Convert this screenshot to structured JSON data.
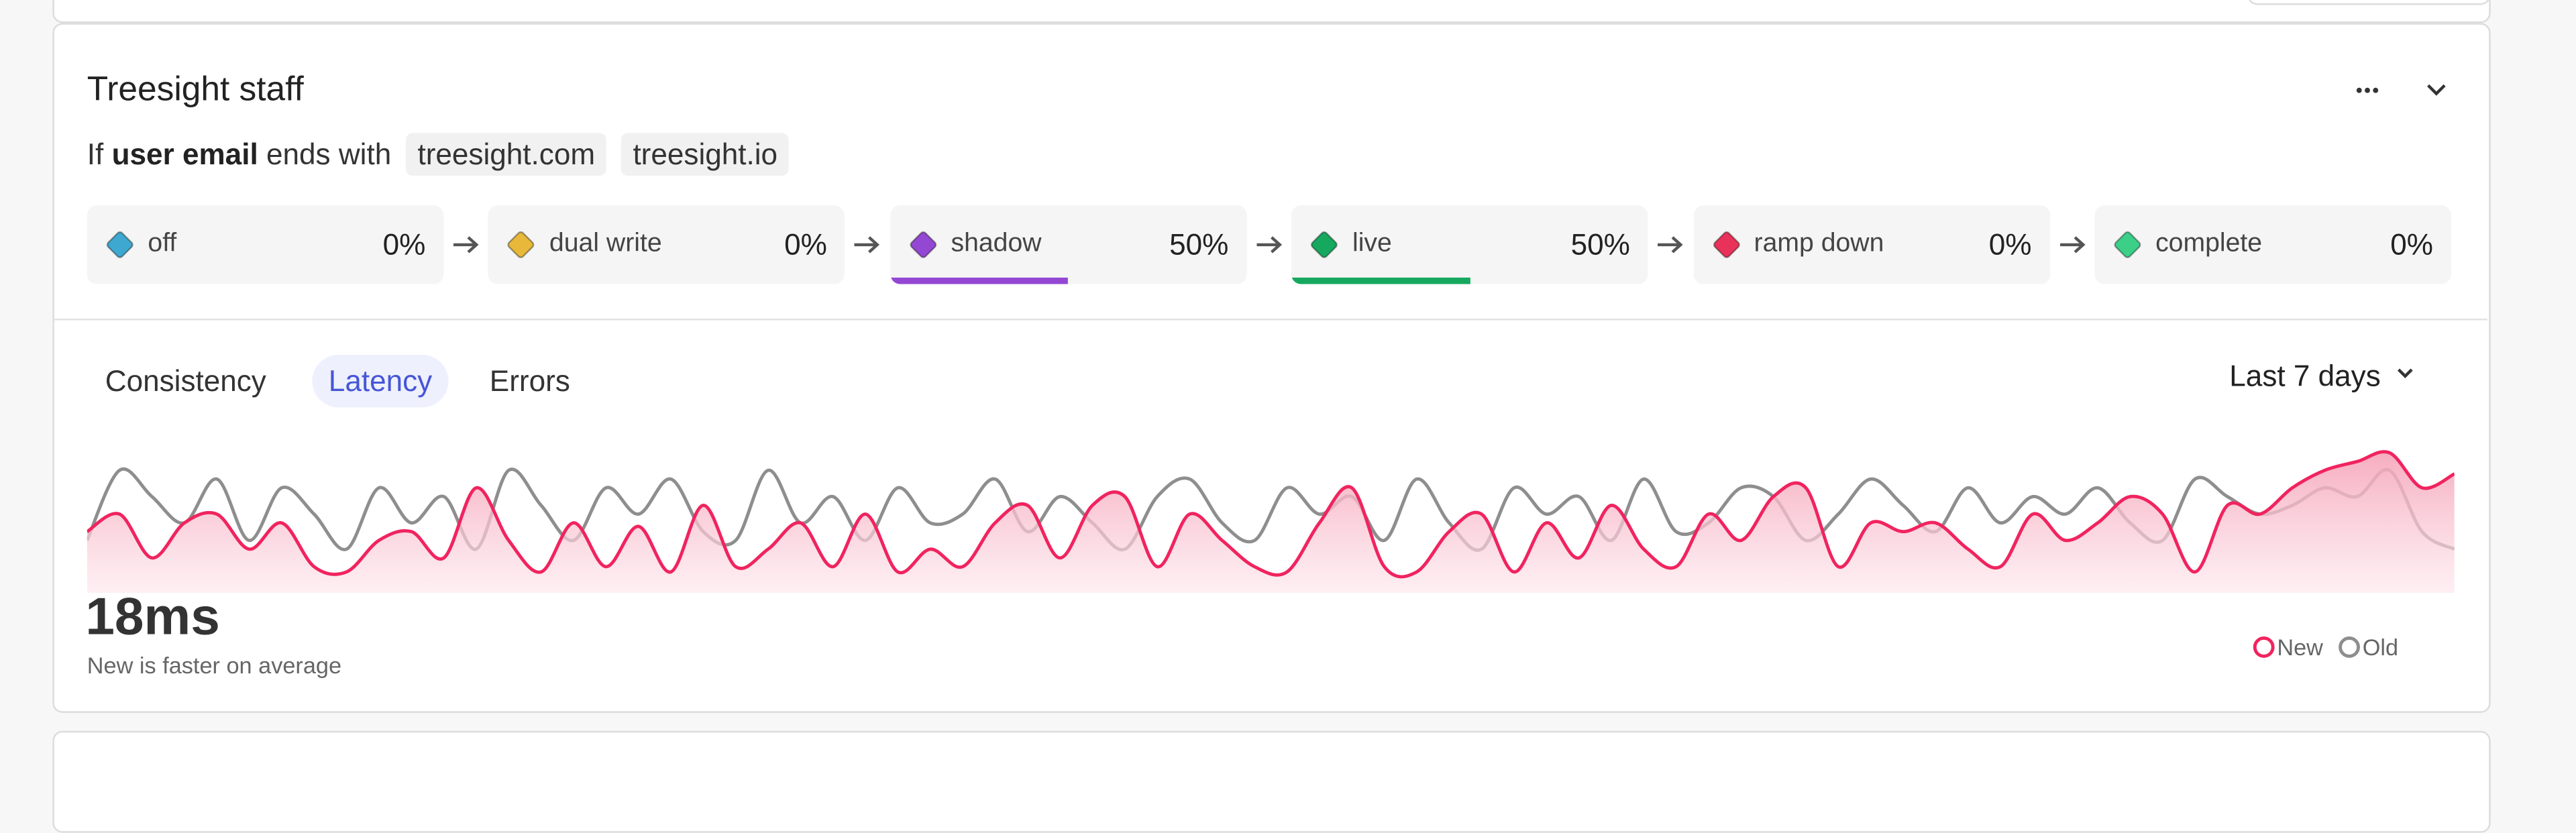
{
  "header": {
    "title": "Treesight staff"
  },
  "rule": {
    "prefix": "If",
    "attribute": "user email",
    "operator": "ends with",
    "values": [
      "treesight.com",
      "treesight.io"
    ]
  },
  "stages": [
    {
      "name": "off",
      "color": "#3ea8d0",
      "percent": {
        "value": 0,
        "label": "0%"
      }
    },
    {
      "name": "dual write",
      "color": "#e8b83a",
      "percent": {
        "value": 0,
        "label": "0%"
      }
    },
    {
      "name": "shadow",
      "color": "#9447d3",
      "percent": {
        "value": 50,
        "label": "50%"
      }
    },
    {
      "name": "live",
      "color": "#16a85f",
      "percent": {
        "value": 50,
        "label": "50%"
      }
    },
    {
      "name": "ramp down",
      "color": "#e8325a",
      "percent": {
        "value": 0,
        "label": "0%"
      }
    },
    {
      "name": "complete",
      "color": "#3ccf88",
      "percent": {
        "value": 0,
        "label": "0%"
      }
    }
  ],
  "tabs": {
    "items": [
      "Consistency",
      "Latency",
      "Errors"
    ],
    "active": 1
  },
  "range": "Last 7 days",
  "metric": {
    "value": "18ms",
    "caption": "New is faster on average"
  },
  "chart": {
    "type": "line",
    "ylim": [
      0,
      90
    ],
    "series": [
      {
        "name": "New",
        "color": "#f0245f",
        "values": [
          35,
          45,
          20,
          40,
          45,
          25,
          40,
          15,
          12,
          30,
          35,
          20,
          60,
          30,
          12,
          40,
          15,
          38,
          12,
          50,
          15,
          25,
          40,
          15,
          45,
          12,
          25,
          15,
          40,
          50,
          20,
          50,
          55,
          15,
          45,
          30,
          15,
          12,
          40,
          60,
          15,
          12,
          35,
          45,
          12,
          40,
          20,
          50,
          25,
          15,
          45,
          30,
          55,
          60,
          15,
          40,
          35,
          40,
          25,
          15,
          45,
          30,
          40,
          55,
          45,
          12,
          50,
          45,
          60,
          70,
          75,
          80,
          60,
          68
        ]
      },
      {
        "name": "Old",
        "color": "#8e8e8e",
        "values": [
          30,
          70,
          55,
          40,
          65,
          30,
          60,
          45,
          25,
          60,
          40,
          55,
          25,
          70,
          50,
          30,
          60,
          45,
          65,
          35,
          30,
          70,
          40,
          55,
          30,
          60,
          40,
          45,
          65,
          35,
          55,
          40,
          25,
          55,
          65,
          40,
          30,
          60,
          45,
          55,
          30,
          65,
          40,
          25,
          60,
          45,
          55,
          30,
          65,
          35,
          40,
          60,
          55,
          30,
          45,
          65,
          50,
          35,
          60,
          40,
          55,
          45,
          60,
          40,
          30,
          65,
          55,
          45,
          50,
          60,
          55,
          70,
          35,
          25
        ]
      }
    ]
  }
}
